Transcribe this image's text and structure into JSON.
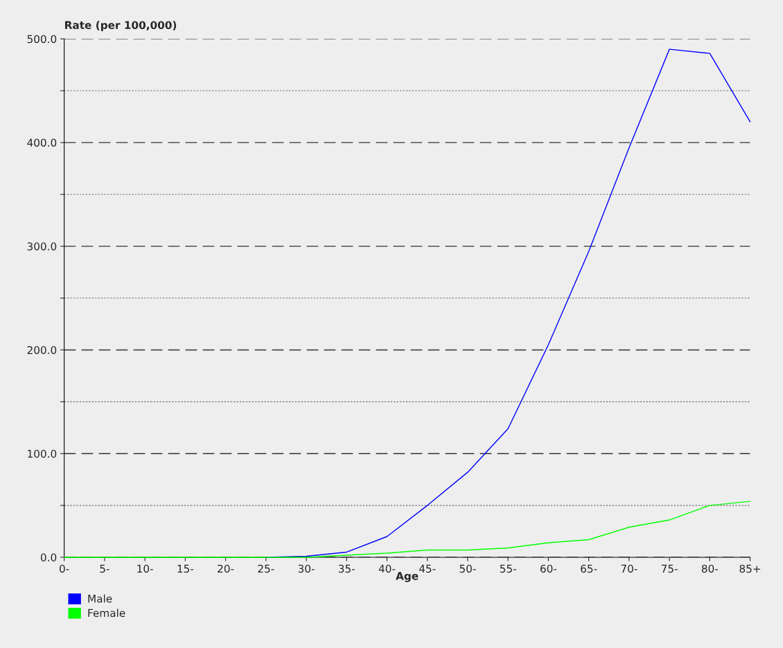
{
  "chart_data": {
    "type": "line",
    "xlabel": "Age",
    "ylabel": "Rate (per 100,000)",
    "categories": [
      "0-",
      "5-",
      "10-",
      "15-",
      "20-",
      "25-",
      "30-",
      "35-",
      "40-",
      "45-",
      "50-",
      "55-",
      "60-",
      "65-",
      "70-",
      "75-",
      "80-",
      "85+"
    ],
    "series": [
      {
        "name": "Male",
        "color": "#0000ff",
        "values": [
          null,
          null,
          null,
          null,
          null,
          0,
          1,
          5,
          20,
          50,
          82,
          124,
          205,
          295,
          395,
          490,
          486,
          420
        ]
      },
      {
        "name": "Female",
        "color": "#00ff00",
        "values": [
          0,
          0,
          0,
          0,
          0,
          0,
          0,
          2,
          4,
          7,
          7,
          9,
          14,
          17,
          29,
          36,
          50,
          54
        ]
      }
    ],
    "ylim": [
      0,
      500
    ],
    "yticks": [
      {
        "value": 0,
        "label": "0.0"
      },
      {
        "value": 50,
        "label": null
      },
      {
        "value": 100,
        "label": "100.0"
      },
      {
        "value": 150,
        "label": null
      },
      {
        "value": 200,
        "label": "200.0"
      },
      {
        "value": 250,
        "label": null
      },
      {
        "value": 300,
        "label": "300.0"
      },
      {
        "value": 350,
        "label": null
      },
      {
        "value": 400,
        "label": "400.0"
      },
      {
        "value": 450,
        "label": null
      },
      {
        "value": 500,
        "label": "500.0"
      }
    ],
    "grid": "y",
    "legend": "bottom left",
    "marker": "none",
    "line_style": "solid"
  }
}
